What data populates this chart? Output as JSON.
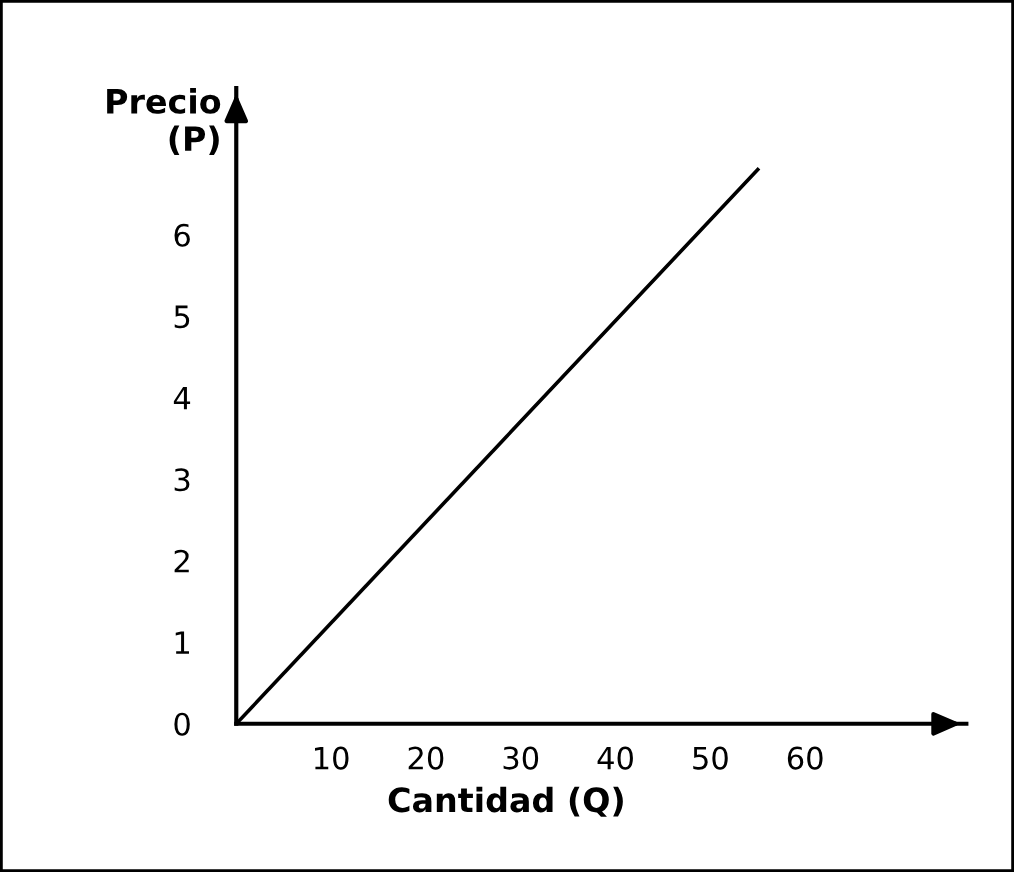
{
  "chart_data": {
    "type": "line",
    "xlabel": "Cantidad (Q)",
    "ylabel": "Precio\n(P)",
    "x": [
      0,
      55
    ],
    "series": [
      {
        "color": "#000000",
        "values": [
          0,
          6.8
        ]
      }
    ],
    "xlim": [
      0,
      77
    ],
    "ylim": [
      0,
      7.8
    ],
    "xticks": [
      10,
      20,
      30,
      40,
      50,
      60
    ],
    "yticks": [
      0,
      1,
      2,
      3,
      4,
      5,
      6
    ],
    "grid": false,
    "legend": false,
    "marker": "none",
    "line_style": "solid"
  }
}
